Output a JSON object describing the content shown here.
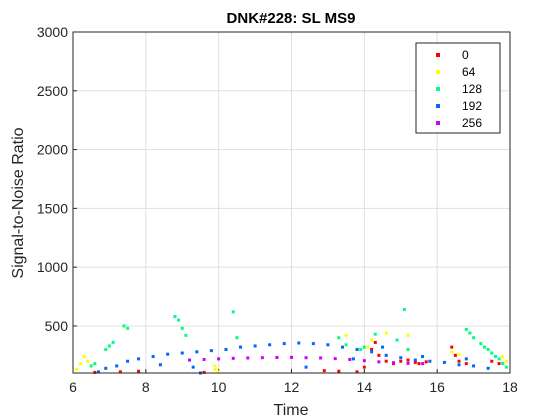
{
  "chart_data": {
    "type": "scatter",
    "title": "DNK#228: SL MS9",
    "xlabel": "Time",
    "ylabel": "Signal-to-Noise Ratio",
    "xlim": [
      6,
      18
    ],
    "ylim": [
      100,
      3000
    ],
    "xticks": [
      "6",
      "8",
      "10",
      "12",
      "14",
      "16",
      "18"
    ],
    "yticks": [
      "500",
      "1000",
      "1500",
      "2000",
      "2500",
      "3000"
    ],
    "grid": true,
    "legend_position": "top-right",
    "series": [
      {
        "name": "0",
        "color": "#ff0000",
        "points": [
          [
            6.6,
            105
          ],
          [
            7.3,
            110
          ],
          [
            7.8,
            115
          ],
          [
            9.6,
            105
          ],
          [
            12.9,
            120
          ],
          [
            13.3,
            115
          ],
          [
            13.8,
            110
          ],
          [
            14.0,
            150
          ],
          [
            14.2,
            300
          ],
          [
            14.3,
            360
          ],
          [
            14.4,
            250
          ],
          [
            14.6,
            200
          ],
          [
            14.8,
            180
          ],
          [
            15.0,
            200
          ],
          [
            15.2,
            210
          ],
          [
            15.4,
            190
          ],
          [
            15.5,
            180
          ],
          [
            15.7,
            195
          ],
          [
            16.4,
            320
          ],
          [
            16.5,
            250
          ],
          [
            16.6,
            200
          ],
          [
            16.8,
            180
          ],
          [
            17.5,
            200
          ],
          [
            17.7,
            180
          ]
        ]
      },
      {
        "name": "64",
        "color": "#ffff00",
        "points": [
          [
            6.1,
            130
          ],
          [
            6.2,
            180
          ],
          [
            6.3,
            240
          ],
          [
            6.4,
            200
          ],
          [
            9.9,
            160
          ],
          [
            9.9,
            130
          ],
          [
            10.0,
            110
          ],
          [
            13.5,
            420
          ],
          [
            14.1,
            320
          ],
          [
            14.2,
            380
          ],
          [
            14.6,
            440
          ],
          [
            15.2,
            420
          ],
          [
            16.4,
            280
          ],
          [
            16.6,
            260
          ],
          [
            17.8,
            240
          ],
          [
            17.9,
            200
          ]
        ]
      },
      {
        "name": "128",
        "color": "#00ff7f",
        "points": [
          [
            6.5,
            160
          ],
          [
            6.6,
            180
          ],
          [
            6.9,
            300
          ],
          [
            7.0,
            330
          ],
          [
            7.1,
            360
          ],
          [
            7.4,
            500
          ],
          [
            7.5,
            480
          ],
          [
            8.8,
            580
          ],
          [
            8.9,
            550
          ],
          [
            9.0,
            480
          ],
          [
            9.1,
            420
          ],
          [
            10.4,
            620
          ],
          [
            10.5,
            400
          ],
          [
            13.3,
            400
          ],
          [
            13.5,
            340
          ],
          [
            13.9,
            300
          ],
          [
            14.0,
            320
          ],
          [
            14.3,
            430
          ],
          [
            14.9,
            380
          ],
          [
            15.1,
            640
          ],
          [
            15.2,
            300
          ],
          [
            16.8,
            470
          ],
          [
            16.9,
            440
          ],
          [
            17.0,
            400
          ],
          [
            17.2,
            350
          ],
          [
            17.3,
            320
          ],
          [
            17.4,
            300
          ],
          [
            17.5,
            270
          ],
          [
            17.6,
            240
          ],
          [
            17.7,
            220
          ],
          [
            17.8,
            180
          ],
          [
            17.9,
            150
          ]
        ]
      },
      {
        "name": "192",
        "color": "#0066ff",
        "points": [
          [
            6.7,
            110
          ],
          [
            6.9,
            140
          ],
          [
            7.2,
            160
          ],
          [
            7.5,
            200
          ],
          [
            7.8,
            220
          ],
          [
            8.2,
            240
          ],
          [
            8.6,
            260
          ],
          [
            9.0,
            270
          ],
          [
            9.4,
            280
          ],
          [
            9.8,
            290
          ],
          [
            10.2,
            300
          ],
          [
            10.6,
            320
          ],
          [
            11.0,
            330
          ],
          [
            11.4,
            340
          ],
          [
            11.8,
            350
          ],
          [
            12.2,
            355
          ],
          [
            12.6,
            350
          ],
          [
            13.0,
            340
          ],
          [
            13.4,
            320
          ],
          [
            13.8,
            300
          ],
          [
            14.2,
            280
          ],
          [
            14.6,
            250
          ],
          [
            15.0,
            230
          ],
          [
            15.4,
            210
          ],
          [
            15.8,
            200
          ],
          [
            16.2,
            190
          ],
          [
            16.6,
            170
          ],
          [
            17.0,
            160
          ],
          [
            17.4,
            140
          ],
          [
            8.4,
            170
          ],
          [
            9.3,
            150
          ],
          [
            9.5,
            100
          ],
          [
            12.4,
            150
          ],
          [
            13.7,
            220
          ],
          [
            14.5,
            320
          ],
          [
            15.6,
            240
          ],
          [
            16.8,
            220
          ]
        ]
      },
      {
        "name": "256",
        "color": "#cc00ff",
        "points": [
          [
            9.2,
            210
          ],
          [
            9.6,
            215
          ],
          [
            10.0,
            220
          ],
          [
            10.4,
            225
          ],
          [
            10.8,
            228
          ],
          [
            11.2,
            230
          ],
          [
            11.6,
            232
          ],
          [
            12.0,
            233
          ],
          [
            12.4,
            230
          ],
          [
            12.8,
            228
          ],
          [
            13.2,
            222
          ],
          [
            13.6,
            215
          ],
          [
            14.0,
            205
          ],
          [
            14.4,
            195
          ],
          [
            14.8,
            188
          ],
          [
            15.2,
            182
          ],
          [
            15.6,
            180
          ]
        ]
      }
    ]
  }
}
